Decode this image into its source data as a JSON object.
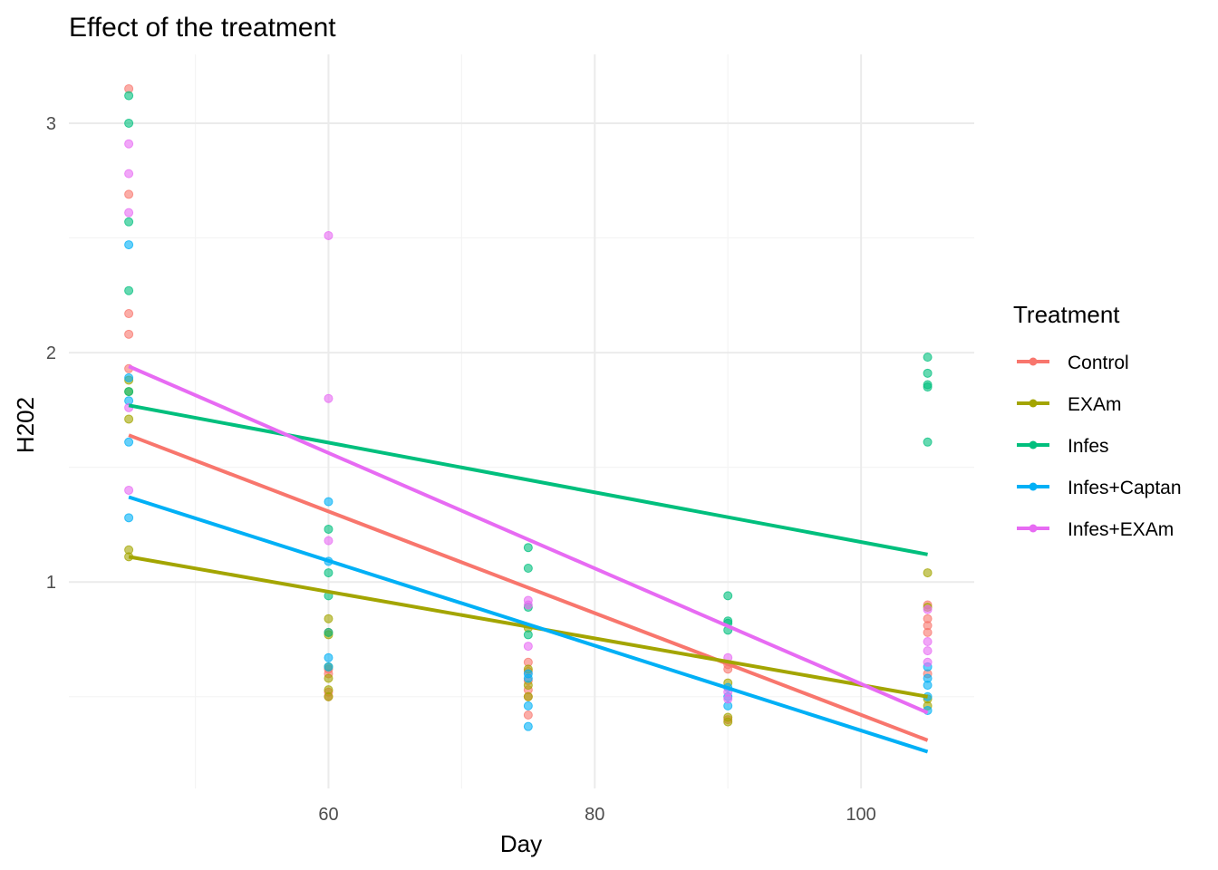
{
  "chart_data": {
    "type": "scatter",
    "title": "Effect of the treatment",
    "xlabel": "Day",
    "ylabel": "H202",
    "xlim": [
      40.5,
      108.5
    ],
    "ylim": [
      0.1,
      3.3
    ],
    "x_ticks": [
      60,
      80,
      100
    ],
    "y_ticks": [
      1,
      2,
      3
    ],
    "grid": true,
    "legend": {
      "title": "Treatment",
      "position": "right"
    },
    "series": [
      {
        "name": "Control",
        "color": "#F8766D",
        "fit_line": {
          "x": [
            45,
            105
          ],
          "y": [
            1.64,
            0.31
          ]
        },
        "points": [
          [
            45,
            3.15
          ],
          [
            45,
            2.69
          ],
          [
            45,
            2.17
          ],
          [
            45,
            2.08
          ],
          [
            45,
            1.93
          ],
          [
            60,
            0.78
          ],
          [
            60,
            0.62
          ],
          [
            60,
            0.6
          ],
          [
            60,
            0.52
          ],
          [
            60,
            0.5
          ],
          [
            75,
            0.65
          ],
          [
            75,
            0.61
          ],
          [
            75,
            0.57
          ],
          [
            75,
            0.53
          ],
          [
            75,
            0.5
          ],
          [
            75,
            0.42
          ],
          [
            90,
            0.64
          ],
          [
            90,
            0.62
          ],
          [
            90,
            0.4
          ],
          [
            105,
            0.9
          ],
          [
            105,
            0.84
          ],
          [
            105,
            0.81
          ],
          [
            105,
            0.78
          ],
          [
            105,
            0.6
          ]
        ]
      },
      {
        "name": "EXAm",
        "color": "#A3A500",
        "fit_line": {
          "x": [
            45,
            105
          ],
          "y": [
            1.11,
            0.5
          ]
        },
        "points": [
          [
            45,
            1.88
          ],
          [
            45,
            1.83
          ],
          [
            45,
            1.71
          ],
          [
            45,
            1.14
          ],
          [
            45,
            1.11
          ],
          [
            60,
            0.84
          ],
          [
            60,
            0.77
          ],
          [
            60,
            0.63
          ],
          [
            60,
            0.58
          ],
          [
            60,
            0.53
          ],
          [
            60,
            0.5
          ],
          [
            75,
            0.8
          ],
          [
            75,
            0.62
          ],
          [
            75,
            0.55
          ],
          [
            75,
            0.5
          ],
          [
            90,
            0.56
          ],
          [
            90,
            0.41
          ],
          [
            90,
            0.39
          ],
          [
            105,
            1.04
          ],
          [
            105,
            0.89
          ],
          [
            105,
            0.49
          ],
          [
            105,
            0.46
          ]
        ]
      },
      {
        "name": "Infes",
        "color": "#00BF7D",
        "fit_line": {
          "x": [
            45,
            105
          ],
          "y": [
            1.77,
            1.12
          ]
        },
        "points": [
          [
            45,
            3.12
          ],
          [
            45,
            3.0
          ],
          [
            45,
            2.57
          ],
          [
            45,
            2.27
          ],
          [
            45,
            1.83
          ],
          [
            60,
            1.23
          ],
          [
            60,
            1.04
          ],
          [
            60,
            0.94
          ],
          [
            60,
            0.78
          ],
          [
            75,
            1.15
          ],
          [
            75,
            1.06
          ],
          [
            75,
            0.89
          ],
          [
            75,
            0.77
          ],
          [
            90,
            0.94
          ],
          [
            90,
            0.83
          ],
          [
            90,
            0.82
          ],
          [
            90,
            0.79
          ],
          [
            105,
            1.98
          ],
          [
            105,
            1.91
          ],
          [
            105,
            1.86
          ],
          [
            105,
            1.85
          ],
          [
            105,
            1.61
          ]
        ]
      },
      {
        "name": "Infes+Captan",
        "color": "#00B0F6",
        "fit_line": {
          "x": [
            45,
            105
          ],
          "y": [
            1.37,
            0.26
          ]
        },
        "points": [
          [
            45,
            2.47
          ],
          [
            45,
            1.89
          ],
          [
            45,
            1.79
          ],
          [
            45,
            1.61
          ],
          [
            45,
            1.28
          ],
          [
            60,
            1.35
          ],
          [
            60,
            1.09
          ],
          [
            60,
            0.67
          ],
          [
            60,
            0.63
          ],
          [
            75,
            0.6
          ],
          [
            75,
            0.58
          ],
          [
            75,
            0.46
          ],
          [
            75,
            0.37
          ],
          [
            90,
            0.54
          ],
          [
            90,
            0.5
          ],
          [
            90,
            0.46
          ],
          [
            105,
            0.63
          ],
          [
            105,
            0.58
          ],
          [
            105,
            0.55
          ],
          [
            105,
            0.5
          ],
          [
            105,
            0.44
          ]
        ]
      },
      {
        "name": "Infes+EXAm",
        "color": "#E76BF3",
        "fit_line": {
          "x": [
            45,
            105
          ],
          "y": [
            1.94,
            0.43
          ]
        },
        "points": [
          [
            45,
            2.91
          ],
          [
            45,
            2.78
          ],
          [
            45,
            2.61
          ],
          [
            45,
            1.76
          ],
          [
            45,
            1.4
          ],
          [
            60,
            2.51
          ],
          [
            60,
            1.8
          ],
          [
            60,
            1.18
          ],
          [
            75,
            0.92
          ],
          [
            75,
            0.9
          ],
          [
            75,
            0.72
          ],
          [
            90,
            0.67
          ],
          [
            90,
            0.52
          ],
          [
            90,
            0.49
          ],
          [
            105,
            0.88
          ],
          [
            105,
            0.74
          ],
          [
            105,
            0.7
          ],
          [
            105,
            0.65
          ]
        ]
      }
    ]
  }
}
